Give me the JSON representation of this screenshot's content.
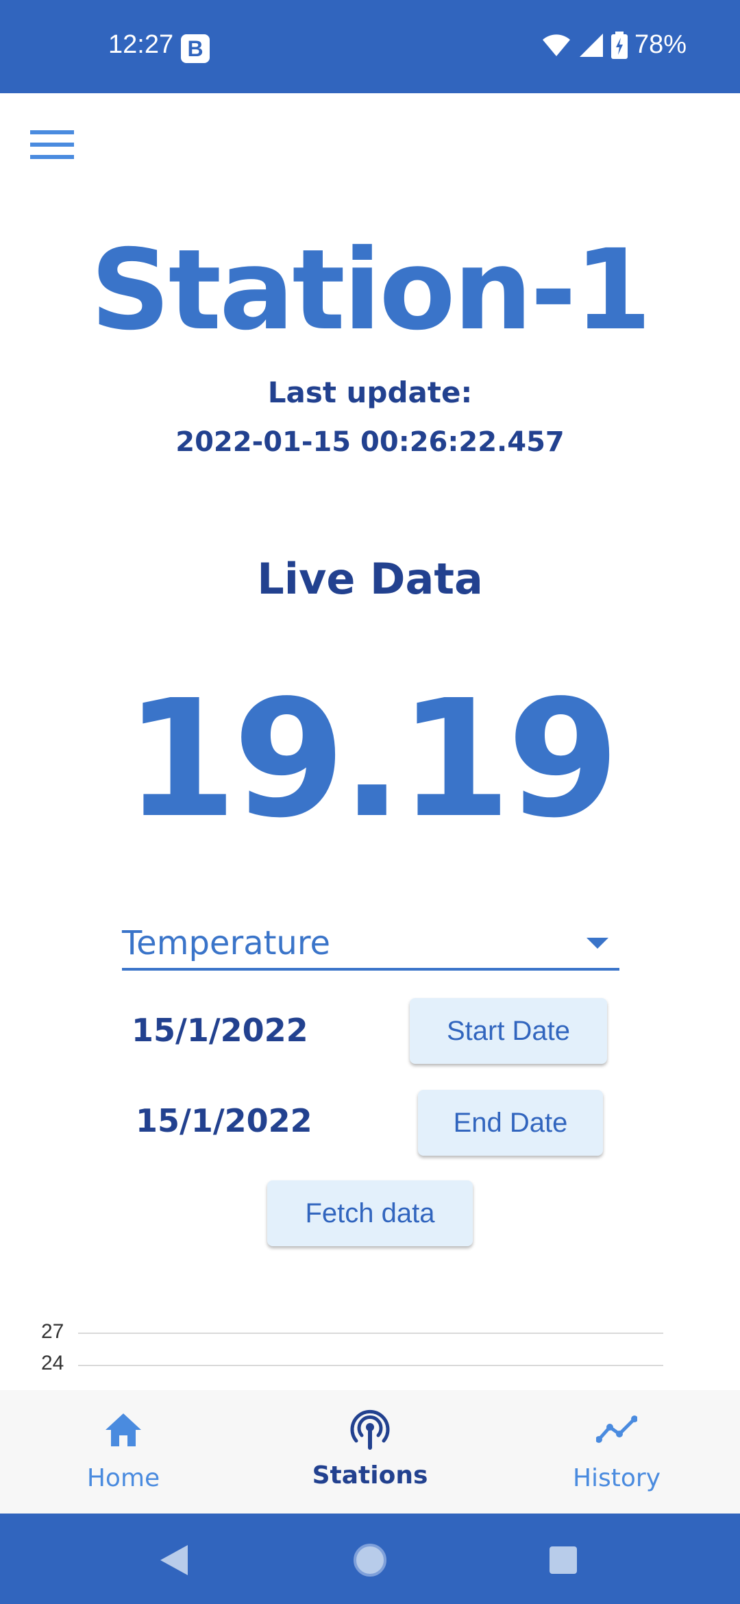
{
  "status_bar": {
    "time": "12:27",
    "notification_badge": "B",
    "battery": "78%",
    "icons": [
      "wifi-icon",
      "signal-icon",
      "battery-charging-icon"
    ]
  },
  "header": {
    "menu_icon": "hamburger-menu-icon"
  },
  "station": {
    "name": "Station-1",
    "last_update_label": "Last update:",
    "last_update_value": "2022-01-15 00:26:22.457",
    "live_label": "Live Data",
    "live_value": "19.19"
  },
  "controls": {
    "sensor_dropdown": "Temperature",
    "start_date": "15/1/2022",
    "start_date_button": "Start Date",
    "end_date": "15/1/2022",
    "end_date_button": "End Date",
    "fetch_button": "Fetch data"
  },
  "chart_data": {
    "type": "line",
    "y_ticks": [
      "27",
      "24"
    ],
    "title": "",
    "xlabel": "",
    "ylabel": ""
  },
  "bottom_nav": {
    "items": [
      {
        "label": "Home",
        "icon": "home-icon",
        "active": false
      },
      {
        "label": "Stations",
        "icon": "broadcast-icon",
        "active": true
      },
      {
        "label": "History",
        "icon": "trend-line-icon",
        "active": false
      }
    ]
  },
  "colors": {
    "primary": "#3165BE",
    "accent": "#3A74C9",
    "dark_text": "#22418F",
    "button_bg": "#E3F0FB",
    "nav_inactive": "#4A8BDF"
  }
}
